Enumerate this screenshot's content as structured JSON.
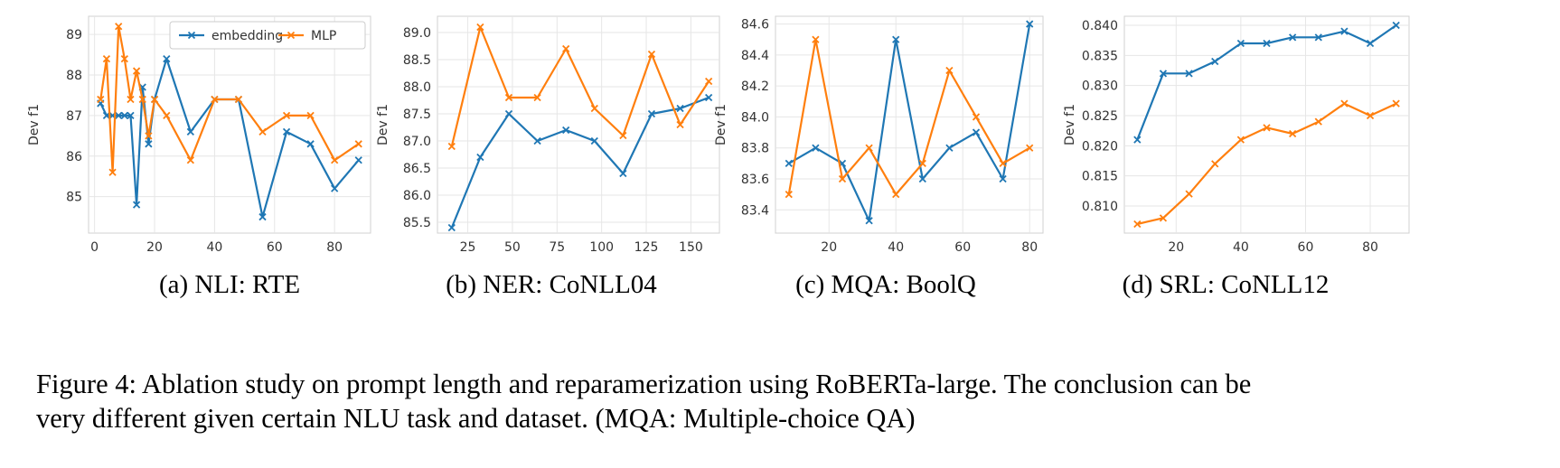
{
  "figure": {
    "caption_line1": "Figure 4:  Ablation study on prompt length and reparamerization using RoBERTa-large.  The conclusion can be",
    "caption_line2": "very different given certain NLU task and dataset. (MQA: Multiple-choice QA)"
  },
  "colors": {
    "embedding": "#1f77b4",
    "MLP": "#ff7f0e"
  },
  "chart_data": [
    {
      "type": "line",
      "subcaption": "(a)  NLI: RTE",
      "ylabel": "Dev f1",
      "xlim": [
        -2,
        92
      ],
      "ylim": [
        84.1,
        89.45
      ],
      "xticks": [
        0,
        20,
        40,
        60,
        80
      ],
      "xtick_labels": [
        "0",
        "20",
        "40",
        "60",
        "80"
      ],
      "yticks": [
        85,
        86,
        87,
        88,
        89
      ],
      "ytick_labels": [
        "85",
        "86",
        "87",
        "88",
        "89"
      ],
      "legend": {
        "position": "top-right"
      },
      "series": [
        {
          "name": "embedding",
          "color": "#1f77b4",
          "points": [
            [
              2,
              87.3
            ],
            [
              4,
              87.0
            ],
            [
              6,
              87.0
            ],
            [
              8,
              87.0
            ],
            [
              10,
              87.0
            ],
            [
              12,
              87.0
            ],
            [
              14,
              84.8
            ],
            [
              16,
              87.7
            ],
            [
              18,
              86.3
            ],
            [
              20,
              87.4
            ],
            [
              24,
              88.4
            ],
            [
              32,
              86.6
            ],
            [
              40,
              87.4
            ],
            [
              48,
              87.4
            ],
            [
              56,
              84.5
            ],
            [
              64,
              86.6
            ],
            [
              72,
              86.3
            ],
            [
              80,
              85.2
            ],
            [
              88,
              85.9
            ]
          ]
        },
        {
          "name": "MLP",
          "color": "#ff7f0e",
          "points": [
            [
              2,
              87.4
            ],
            [
              4,
              88.4
            ],
            [
              6,
              85.6
            ],
            [
              8,
              89.2
            ],
            [
              10,
              88.4
            ],
            [
              12,
              87.4
            ],
            [
              14,
              88.1
            ],
            [
              16,
              87.4
            ],
            [
              18,
              86.5
            ],
            [
              20,
              87.4
            ],
            [
              24,
              87.0
            ],
            [
              32,
              85.9
            ],
            [
              40,
              87.4
            ],
            [
              48,
              87.4
            ],
            [
              56,
              86.6
            ],
            [
              64,
              87.0
            ],
            [
              72,
              87.0
            ],
            [
              80,
              85.9
            ],
            [
              88,
              86.3
            ]
          ]
        }
      ]
    },
    {
      "type": "line",
      "subcaption": "(b)  NER: CoNLL04",
      "ylabel": "Dev f1",
      "xlim": [
        8,
        166
      ],
      "ylim": [
        85.3,
        89.3
      ],
      "xticks": [
        25,
        50,
        75,
        100,
        125,
        150
      ],
      "xtick_labels": [
        "25",
        "50",
        "75",
        "100",
        "125",
        "150"
      ],
      "yticks": [
        85.5,
        86.0,
        86.5,
        87.0,
        87.5,
        88.0,
        88.5,
        89.0
      ],
      "ytick_labels": [
        "85.5",
        "86.0",
        "86.5",
        "87.0",
        "87.5",
        "88.0",
        "88.5",
        "89.0"
      ],
      "series": [
        {
          "name": "embedding",
          "color": "#1f77b4",
          "points": [
            [
              16,
              85.4
            ],
            [
              32,
              86.7
            ],
            [
              48,
              87.5
            ],
            [
              64,
              87.0
            ],
            [
              80,
              87.2
            ],
            [
              96,
              87.0
            ],
            [
              112,
              86.4
            ],
            [
              128,
              87.5
            ],
            [
              144,
              87.6
            ],
            [
              160,
              87.8
            ]
          ]
        },
        {
          "name": "MLP",
          "color": "#ff7f0e",
          "points": [
            [
              16,
              86.9
            ],
            [
              32,
              89.1
            ],
            [
              48,
              87.8
            ],
            [
              64,
              87.8
            ],
            [
              80,
              88.7
            ],
            [
              96,
              87.6
            ],
            [
              112,
              87.1
            ],
            [
              128,
              88.6
            ],
            [
              144,
              87.3
            ],
            [
              160,
              88.1
            ]
          ]
        }
      ]
    },
    {
      "type": "line",
      "subcaption": "(c)  MQA: BoolQ",
      "ylabel": "Dev f1",
      "xlim": [
        4,
        84
      ],
      "ylim": [
        83.25,
        84.65
      ],
      "xticks": [
        20,
        40,
        60,
        80
      ],
      "xtick_labels": [
        "20",
        "40",
        "60",
        "80"
      ],
      "yticks": [
        83.4,
        83.6,
        83.8,
        84.0,
        84.2,
        84.4,
        84.6
      ],
      "ytick_labels": [
        "83.4",
        "83.6",
        "83.8",
        "84.0",
        "84.2",
        "84.4",
        "84.6"
      ],
      "series": [
        {
          "name": "embedding",
          "color": "#1f77b4",
          "points": [
            [
              8,
              83.7
            ],
            [
              16,
              83.8
            ],
            [
              24,
              83.7
            ],
            [
              32,
              83.33
            ],
            [
              40,
              84.5
            ],
            [
              48,
              83.6
            ],
            [
              56,
              83.8
            ],
            [
              64,
              83.9
            ],
            [
              72,
              83.6
            ],
            [
              80,
              84.6
            ]
          ]
        },
        {
          "name": "MLP",
          "color": "#ff7f0e",
          "points": [
            [
              8,
              83.5
            ],
            [
              16,
              84.5
            ],
            [
              24,
              83.6
            ],
            [
              32,
              83.8
            ],
            [
              40,
              83.5
            ],
            [
              48,
              83.7
            ],
            [
              56,
              84.3
            ],
            [
              64,
              84.0
            ],
            [
              72,
              83.7
            ],
            [
              80,
              83.8
            ]
          ]
        }
      ]
    },
    {
      "type": "line",
      "subcaption": "(d)  SRL: CoNLL12",
      "ylabel": "Dev f1",
      "xlim": [
        4,
        92
      ],
      "ylim": [
        0.8055,
        0.8415
      ],
      "xticks": [
        20,
        40,
        60,
        80
      ],
      "xtick_labels": [
        "20",
        "40",
        "60",
        "80"
      ],
      "yticks": [
        0.81,
        0.815,
        0.82,
        0.825,
        0.83,
        0.835,
        0.84
      ],
      "ytick_labels": [
        "0.810",
        "0.815",
        "0.820",
        "0.825",
        "0.830",
        "0.835",
        "0.840"
      ],
      "series": [
        {
          "name": "embedding",
          "color": "#1f77b4",
          "points": [
            [
              8,
              0.821
            ],
            [
              16,
              0.832
            ],
            [
              24,
              0.832
            ],
            [
              32,
              0.834
            ],
            [
              40,
              0.837
            ],
            [
              48,
              0.837
            ],
            [
              56,
              0.838
            ],
            [
              64,
              0.838
            ],
            [
              72,
              0.839
            ],
            [
              80,
              0.837
            ],
            [
              88,
              0.84
            ]
          ]
        },
        {
          "name": "MLP",
          "color": "#ff7f0e",
          "points": [
            [
              8,
              0.807
            ],
            [
              16,
              0.808
            ],
            [
              24,
              0.812
            ],
            [
              32,
              0.817
            ],
            [
              40,
              0.821
            ],
            [
              48,
              0.823
            ],
            [
              56,
              0.822
            ],
            [
              64,
              0.824
            ],
            [
              72,
              0.827
            ],
            [
              80,
              0.825
            ],
            [
              88,
              0.827
            ]
          ]
        }
      ]
    }
  ]
}
